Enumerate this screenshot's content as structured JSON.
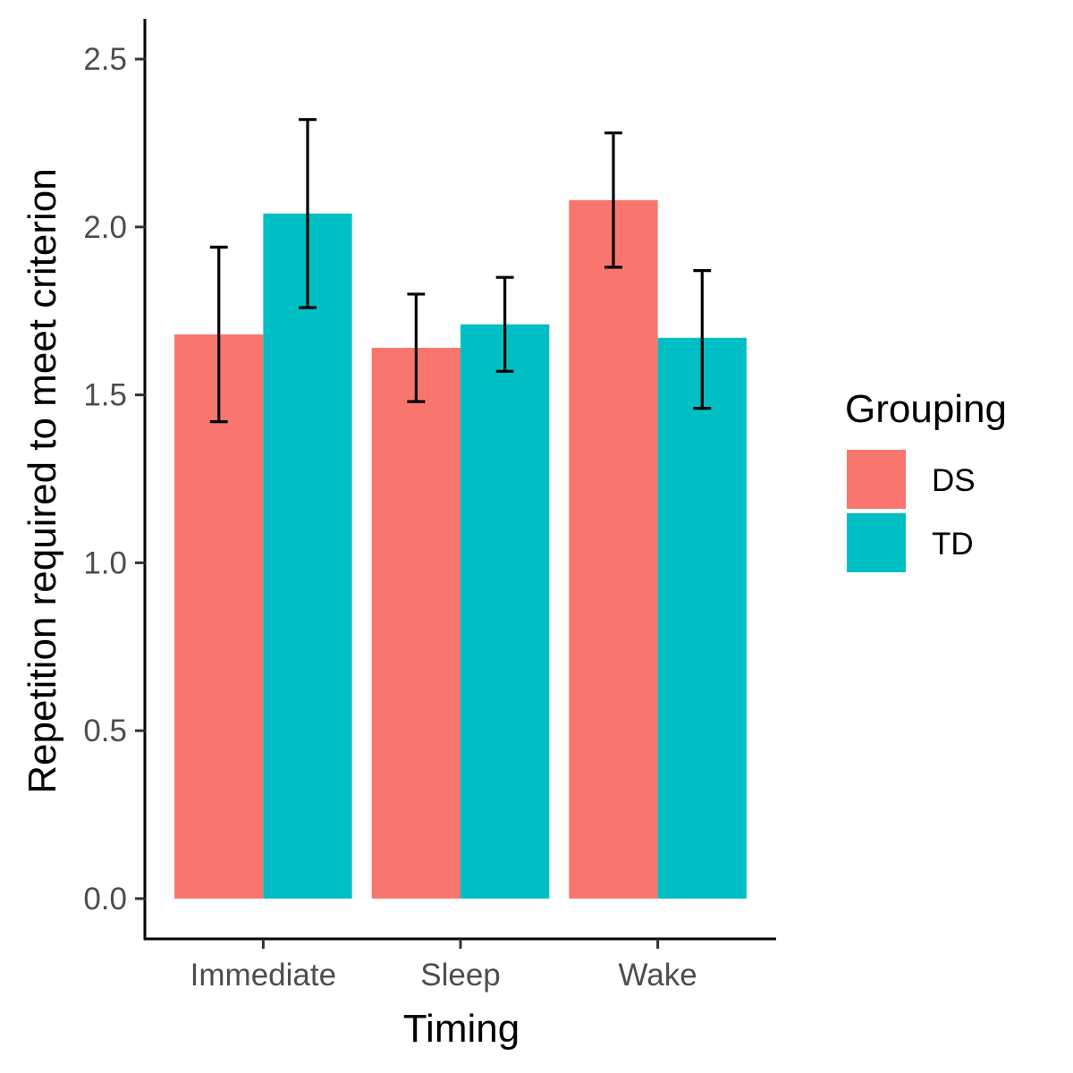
{
  "chart_data": {
    "type": "bar",
    "xlabel": "Timing",
    "ylabel": "Repetition required to meet criterion",
    "categories": [
      "Immediate",
      "Sleep",
      "Wake"
    ],
    "series": [
      {
        "name": "DS",
        "color": "#F8766D",
        "values": [
          1.68,
          1.64,
          2.08
        ],
        "error_low": [
          1.42,
          1.48,
          1.88
        ],
        "error_high": [
          1.94,
          1.8,
          2.28
        ]
      },
      {
        "name": "TD",
        "color": "#00BFC4",
        "values": [
          2.04,
          1.71,
          1.67
        ],
        "error_low": [
          1.76,
          1.57,
          1.46
        ],
        "error_high": [
          2.32,
          1.85,
          1.87
        ]
      }
    ],
    "ylim": [
      -0.12,
      2.62
    ],
    "yticks": [
      "0.0",
      "0.5",
      "1.0",
      "1.5",
      "2.0",
      "2.5"
    ],
    "grid": false,
    "legend": {
      "title": "Grouping",
      "position": "right"
    }
  }
}
